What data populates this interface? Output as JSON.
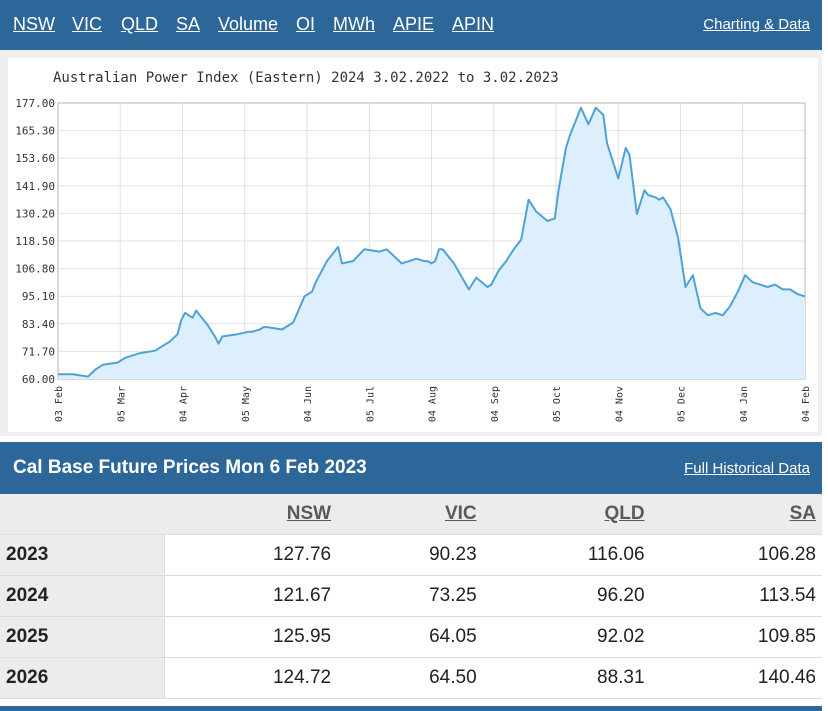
{
  "nav": {
    "links": [
      "NSW",
      "VIC",
      "QLD",
      "SA",
      "Volume",
      "OI",
      "MWh",
      "APIE",
      "APIN"
    ],
    "right_link": "Charting & Data"
  },
  "chart_data": {
    "type": "area",
    "title": "Australian Power Index (Eastern) 2024 3.02.2022 to 3.02.2023",
    "ylim": [
      60.0,
      177.0
    ],
    "y_ticks": [
      "177.00",
      "165.30",
      "153.60",
      "141.90",
      "130.20",
      "118.50",
      "106.80",
      "95.10",
      "83.40",
      "71.70",
      "60.00"
    ],
    "x_ticks": [
      "03 Feb",
      "05 Mar",
      "04 Apr",
      "05 May",
      "04 Jun",
      "05 Jul",
      "04 Aug",
      "04 Sep",
      "05 Oct",
      "04 Nov",
      "05 Dec",
      "04 Jan",
      "04 Feb"
    ],
    "grid": true,
    "fill_color": "#ddeefc",
    "line_color": "#4da3d4",
    "x": [
      0,
      0.02,
      0.04,
      0.05,
      0.06,
      0.08,
      0.09,
      0.11,
      0.13,
      0.15,
      0.16,
      0.165,
      0.17,
      0.18,
      0.185,
      0.2,
      0.21,
      0.215,
      0.22,
      0.24,
      0.255,
      0.26,
      0.27,
      0.275,
      0.28,
      0.3,
      0.305,
      0.315,
      0.33,
      0.34,
      0.345,
      0.36,
      0.375,
      0.38,
      0.395,
      0.41,
      0.43,
      0.44,
      0.45,
      0.46,
      0.48,
      0.49,
      0.495,
      0.5,
      0.505,
      0.51,
      0.515,
      0.52,
      0.53,
      0.55,
      0.56,
      0.575,
      0.58,
      0.59,
      0.6,
      0.61,
      0.62,
      0.63,
      0.64,
      0.655,
      0.665,
      0.67,
      0.68,
      0.685,
      0.7,
      0.71,
      0.72,
      0.73,
      0.735,
      0.75,
      0.76,
      0.765,
      0.775,
      0.785,
      0.79,
      0.8,
      0.805,
      0.81,
      0.82,
      0.83,
      0.84,
      0.85,
      0.86,
      0.87,
      0.88,
      0.89,
      0.9,
      0.91,
      0.92,
      0.93,
      0.94,
      0.95,
      0.96,
      0.97,
      0.98,
      0.99,
      1.0
    ],
    "values": [
      62,
      62,
      61,
      64,
      66,
      67,
      69,
      71,
      72,
      76,
      79,
      85,
      88,
      86,
      89,
      83,
      78,
      75,
      78,
      79,
      80,
      80,
      81,
      82,
      82,
      81,
      82,
      84,
      95,
      97,
      101,
      110,
      116,
      109,
      110,
      115,
      114,
      115,
      112,
      109,
      111,
      110,
      110,
      109,
      110,
      115,
      115,
      113,
      109,
      98,
      103,
      99,
      100,
      106,
      110,
      115,
      119,
      136,
      131,
      127,
      128,
      140,
      158,
      163,
      175,
      168,
      175,
      172,
      160,
      145,
      158,
      155,
      130,
      140,
      138,
      137,
      136,
      137,
      132,
      120,
      99,
      104,
      90,
      87,
      88,
      87,
      91,
      97,
      104,
      101,
      100,
      99,
      100,
      98,
      98,
      96,
      95
    ]
  },
  "table": {
    "title": "Cal Base Future Prices Mon 6 Feb 2023",
    "link": "Full Historical Data",
    "columns": [
      "NSW",
      "VIC",
      "QLD",
      "SA"
    ],
    "rows": [
      {
        "year": "2023",
        "values": [
          "127.76",
          "90.23",
          "116.06",
          "106.28"
        ]
      },
      {
        "year": "2024",
        "values": [
          "121.67",
          "73.25",
          "96.20",
          "113.54"
        ]
      },
      {
        "year": "2025",
        "values": [
          "125.95",
          "64.05",
          "92.02",
          "109.85"
        ]
      },
      {
        "year": "2026",
        "values": [
          "124.72",
          "64.50",
          "88.31",
          "140.46"
        ]
      }
    ]
  }
}
